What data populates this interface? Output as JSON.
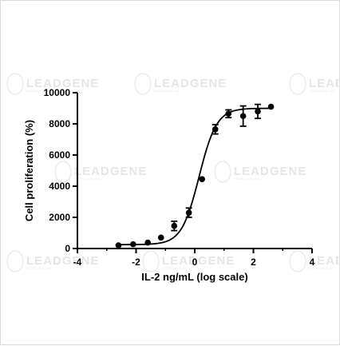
{
  "chart_data": {
    "type": "scatter",
    "xlabel": "IL-2 ng/mL (log scale)",
    "ylabel": "Cell proliferation (%)",
    "xlim": [
      -4,
      4
    ],
    "ylim": [
      0,
      10000
    ],
    "x_ticks": [
      -4,
      -2,
      0,
      2,
      4
    ],
    "y_ticks": [
      0,
      2000,
      4000,
      6000,
      8000,
      10000
    ],
    "x_tick_labels": [
      "-4",
      "-2",
      "0",
      "2",
      "4"
    ],
    "y_tick_labels": [
      "0",
      "2000",
      "4000",
      "6000",
      "8000",
      "10000"
    ],
    "grid": false,
    "series": [
      {
        "points": [
          {
            "x": -2.6,
            "y": 200,
            "err": 0
          },
          {
            "x": -2.1,
            "y": 270,
            "err": 0
          },
          {
            "x": -1.6,
            "y": 380,
            "err": 0
          },
          {
            "x": -1.15,
            "y": 700,
            "err": 0
          },
          {
            "x": -0.7,
            "y": 1450,
            "err": 300
          },
          {
            "x": -0.2,
            "y": 2300,
            "err": 300
          },
          {
            "x": 0.25,
            "y": 4450,
            "err": 0
          },
          {
            "x": 0.7,
            "y": 7650,
            "err": 300
          },
          {
            "x": 1.15,
            "y": 8650,
            "err": 250
          },
          {
            "x": 1.65,
            "y": 8500,
            "err": 650
          },
          {
            "x": 2.15,
            "y": 8800,
            "err": 450
          },
          {
            "x": 2.6,
            "y": 9100,
            "err": 0
          }
        ],
        "fit": {
          "model": "4PL",
          "bottom": 250,
          "top": 9000,
          "log_ec50": 0.15,
          "hill": 1.45
        }
      }
    ]
  },
  "watermark": {
    "brand": "LEADGENE",
    "tagline": "BIOMEDICAL INC."
  }
}
